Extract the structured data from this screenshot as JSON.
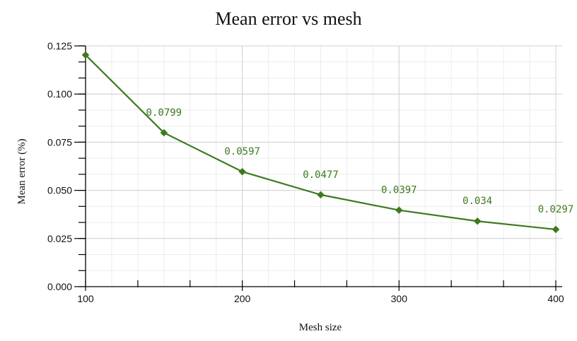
{
  "chart_data": {
    "type": "line",
    "title": "Mean error vs mesh",
    "xlabel": "Mesh size",
    "ylabel": "Mean error (%)",
    "xlim": [
      100,
      400
    ],
    "ylim": [
      0,
      0.125
    ],
    "x_ticks": [
      "100",
      "200",
      "300",
      "400"
    ],
    "y_ticks": [
      "0.000",
      "0.025",
      "0.050",
      "0.075",
      "0.100",
      "0.125"
    ],
    "grid": true,
    "legend": "none",
    "series": [
      {
        "x": [
          100,
          150,
          200,
          250,
          300,
          350,
          400
        ],
        "values": [
          0.1203,
          0.0799,
          0.0597,
          0.0477,
          0.0397,
          0.034,
          0.0297
        ],
        "data_labels": [
          "",
          "0.0799",
          "0.0597",
          "0.0477",
          "0.0397",
          "0.034",
          "0.0297"
        ],
        "color": "#3d7a1f",
        "marker": "diamond"
      }
    ]
  }
}
